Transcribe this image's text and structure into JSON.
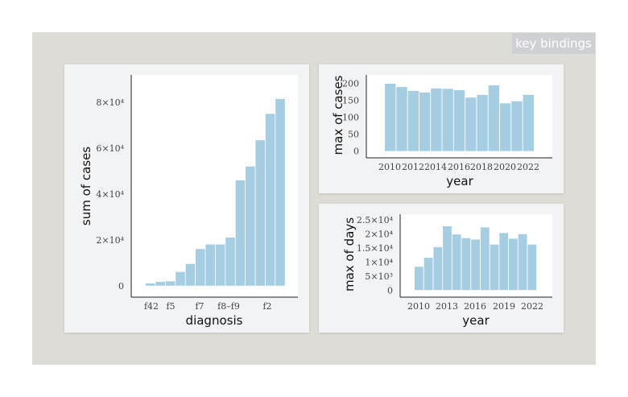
{
  "key_bindings_label": "key bindings",
  "colors": {
    "bar": "#a6cee3",
    "stage": "#dddcd6",
    "panel": "#f2f3f5"
  },
  "chart_data": [
    {
      "type": "bar",
      "xlabel": "diagnosis",
      "ylabel": "sum of cases",
      "ylim": [
        -5000,
        92000
      ],
      "yticks": [
        0,
        20000,
        40000,
        60000,
        80000
      ],
      "ytick_labels": [
        "0",
        "2×10⁴",
        "4×10⁴",
        "6×10⁴",
        "8×10⁴"
      ],
      "xtick_labels": [
        "f42",
        "f5",
        "f7",
        "f8–f9",
        "f2"
      ],
      "values": [
        1000,
        1700,
        1900,
        6000,
        9500,
        16000,
        18000,
        18000,
        21000,
        46000,
        52000,
        63500,
        75000,
        81500
      ]
    },
    {
      "type": "bar",
      "xlabel": "year",
      "ylabel": "max of cases",
      "ylim": [
        -20,
        225
      ],
      "yticks": [
        0,
        50,
        100,
        150,
        200
      ],
      "ytick_labels": [
        "0",
        "50",
        "100",
        "150",
        "200"
      ],
      "categories": [
        2010,
        2011,
        2012,
        2013,
        2014,
        2015,
        2016,
        2017,
        2018,
        2019,
        2020,
        2021,
        2022
      ],
      "xtick_labels": [
        "2010",
        "2012",
        "2014",
        "2016",
        "2018",
        "2020",
        "2022"
      ],
      "values": [
        199,
        189,
        178,
        173,
        185,
        184,
        180,
        158,
        166,
        194,
        141,
        147,
        166
      ]
    },
    {
      "type": "bar",
      "xlabel": "year",
      "ylabel": "max of days",
      "ylim": [
        -2500,
        27000
      ],
      "yticks": [
        0,
        5000,
        10000,
        15000,
        20000,
        25000
      ],
      "ytick_labels": [
        "0",
        "5×10³",
        "1×10⁴",
        "1.5×10⁴",
        "2×10⁴",
        "2.5×10⁴"
      ],
      "categories": [
        2010,
        2011,
        2012,
        2013,
        2014,
        2015,
        2016,
        2017,
        2018,
        2019,
        2020,
        2021,
        2022
      ],
      "xtick_labels": [
        "2010",
        "2013",
        "2016",
        "2019",
        "2022"
      ],
      "values": [
        8300,
        11500,
        15300,
        22700,
        19800,
        18500,
        18000,
        22300,
        16200,
        20300,
        18300,
        19900,
        16200
      ]
    }
  ]
}
